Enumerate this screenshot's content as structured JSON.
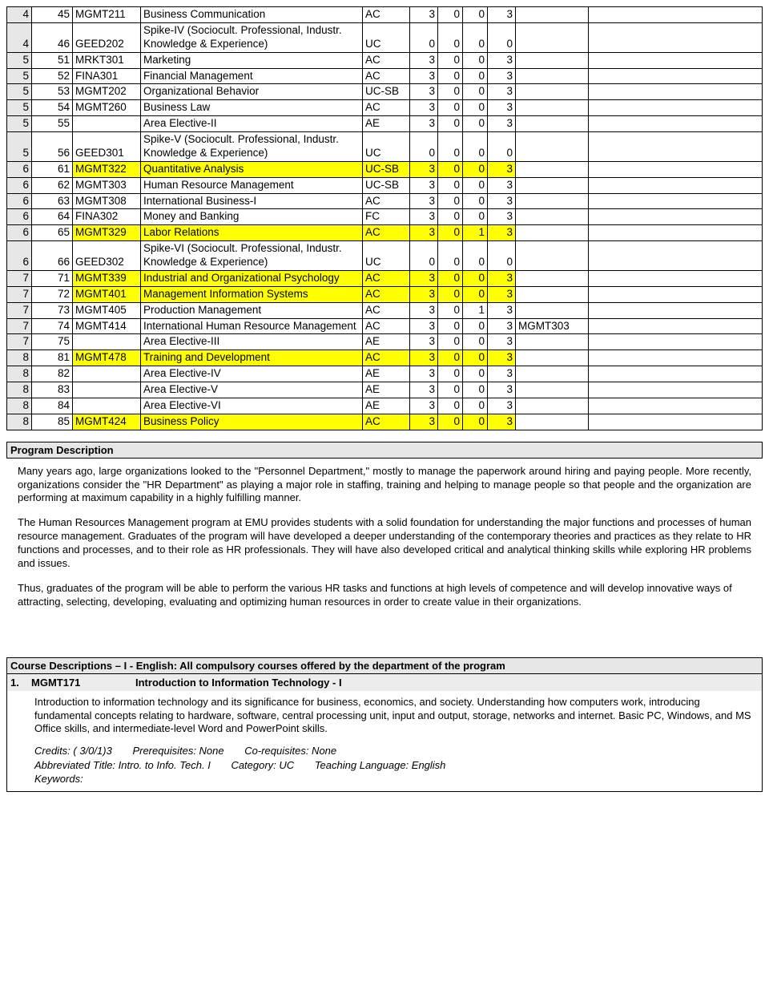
{
  "rows": [
    {
      "sem": "4",
      "rn": "45",
      "code": "MGMT211",
      "title": "Business Communication",
      "cat": "AC",
      "a": "3",
      "b": "0",
      "c": "0",
      "d": "3",
      "pre": "",
      "x": "",
      "hl": false
    },
    {
      "sem": "4",
      "rn": "46",
      "code": "GEED202",
      "title": "Spike-IV (Sociocult. Professional, Industr. Knowledge & Experience)",
      "cat": "UC",
      "a": "0",
      "b": "0",
      "c": "0",
      "d": "0",
      "pre": "",
      "x": "",
      "hl": false
    },
    {
      "sem": "5",
      "rn": "51",
      "code": "MRKT301",
      "title": "Marketing",
      "cat": "AC",
      "a": "3",
      "b": "0",
      "c": "0",
      "d": "3",
      "pre": "",
      "x": "",
      "hl": false
    },
    {
      "sem": "5",
      "rn": "52",
      "code": "FINA301",
      "title": "Financial Management",
      "cat": "AC",
      "a": "3",
      "b": "0",
      "c": "0",
      "d": "3",
      "pre": "",
      "x": "",
      "hl": false
    },
    {
      "sem": "5",
      "rn": "53",
      "code": "MGMT202",
      "title": "Organizational Behavior",
      "cat": "UC-SB",
      "a": "3",
      "b": "0",
      "c": "0",
      "d": "3",
      "pre": "",
      "x": "",
      "hl": false
    },
    {
      "sem": "5",
      "rn": "54",
      "code": "MGMT260",
      "title": "Business Law",
      "cat": "AC",
      "a": "3",
      "b": "0",
      "c": "0",
      "d": "3",
      "pre": "",
      "x": "",
      "hl": false
    },
    {
      "sem": "5",
      "rn": "55",
      "code": "",
      "title": "Area Elective-II",
      "cat": "AE",
      "a": "3",
      "b": "0",
      "c": "0",
      "d": "3",
      "pre": "",
      "x": "",
      "hl": false
    },
    {
      "sem": "5",
      "rn": "56",
      "code": "GEED301",
      "title": "Spike-V (Sociocult. Professional, Industr. Knowledge & Experience)",
      "cat": "UC",
      "a": "0",
      "b": "0",
      "c": "0",
      "d": "0",
      "pre": "",
      "x": "",
      "hl": false
    },
    {
      "sem": "6",
      "rn": "61",
      "code": "MGMT322",
      "title": "Quantitative Analysis",
      "cat": "UC-SB",
      "a": "3",
      "b": "0",
      "c": "0",
      "d": "3",
      "pre": "",
      "x": "",
      "hl": true
    },
    {
      "sem": "6",
      "rn": "62",
      "code": "MGMT303",
      "title": "Human Resource Management",
      "cat": "UC-SB",
      "a": "3",
      "b": "0",
      "c": "0",
      "d": "3",
      "pre": "",
      "x": "",
      "hl": false
    },
    {
      "sem": "6",
      "rn": "63",
      "code": "MGMT308",
      "title": "International Business-I",
      "cat": "AC",
      "a": "3",
      "b": "0",
      "c": "0",
      "d": "3",
      "pre": "",
      "x": "",
      "hl": false
    },
    {
      "sem": "6",
      "rn": "64",
      "code": "FINA302",
      "title": "Money and Banking",
      "cat": "FC",
      "a": "3",
      "b": "0",
      "c": "0",
      "d": "3",
      "pre": "",
      "x": "",
      "hl": false
    },
    {
      "sem": "6",
      "rn": "65",
      "code": "MGMT329",
      "title": "Labor Relations",
      "cat": "AC",
      "a": "3",
      "b": "0",
      "c": "1",
      "d": "3",
      "pre": "",
      "x": "",
      "hl": true
    },
    {
      "sem": "6",
      "rn": "66",
      "code": "GEED302",
      "title": "Spike-VI (Sociocult. Professional, Industr. Knowledge & Experience)",
      "cat": "UC",
      "a": "0",
      "b": "0",
      "c": "0",
      "d": "0",
      "pre": "",
      "x": "",
      "hl": false
    },
    {
      "sem": "7",
      "rn": "71",
      "code": "MGMT339",
      "title": "Industrial and Organizational Psychology",
      "cat": "AC",
      "a": "3",
      "b": "0",
      "c": "0",
      "d": "3",
      "pre": "",
      "x": "",
      "hl": true
    },
    {
      "sem": "7",
      "rn": "72",
      "code": "MGMT401",
      "title": "Management Information Systems",
      "cat": "AC",
      "a": "3",
      "b": "0",
      "c": "0",
      "d": "3",
      "pre": "",
      "x": "",
      "hl": true
    },
    {
      "sem": "7",
      "rn": "73",
      "code": "MGMT405",
      "title": "Production Management",
      "cat": "AC",
      "a": "3",
      "b": "0",
      "c": "1",
      "d": "3",
      "pre": "",
      "x": "",
      "hl": false
    },
    {
      "sem": "7",
      "rn": "74",
      "code": "MGMT414",
      "title": "International Human Resource Management",
      "cat": "AC",
      "a": "3",
      "b": "0",
      "c": "0",
      "d": "3",
      "pre": "MGMT303",
      "x": "",
      "hl": false
    },
    {
      "sem": "7",
      "rn": "75",
      "code": "",
      "title": "Area Elective-III",
      "cat": "AE",
      "a": "3",
      "b": "0",
      "c": "0",
      "d": "3",
      "pre": "",
      "x": "",
      "hl": false
    },
    {
      "sem": "8",
      "rn": "81",
      "code": "MGMT478",
      "title": "Training and Development",
      "cat": "AC",
      "a": "3",
      "b": "0",
      "c": "0",
      "d": "3",
      "pre": "",
      "x": "",
      "hl": true
    },
    {
      "sem": "8",
      "rn": "82",
      "code": "",
      "title": "Area Elective-IV",
      "cat": "AE",
      "a": "3",
      "b": "0",
      "c": "0",
      "d": "3",
      "pre": "",
      "x": "",
      "hl": false
    },
    {
      "sem": "8",
      "rn": "83",
      "code": "",
      "title": "Area Elective-V",
      "cat": "AE",
      "a": "3",
      "b": "0",
      "c": "0",
      "d": "3",
      "pre": "",
      "x": "",
      "hl": false
    },
    {
      "sem": "8",
      "rn": "84",
      "code": "",
      "title": "Area Elective-VI",
      "cat": "AE",
      "a": "3",
      "b": "0",
      "c": "0",
      "d": "3",
      "pre": "",
      "x": "",
      "hl": false
    },
    {
      "sem": "8",
      "rn": "85",
      "code": "MGMT424",
      "title": "Business Policy",
      "cat": "AC",
      "a": "3",
      "b": "0",
      "c": "0",
      "d": "3",
      "pre": "",
      "x": "",
      "hl": true
    }
  ],
  "section1_title": "Program Description",
  "para1": "Many years ago, large organizations looked to the \"Personnel Department,\" mostly to manage the paperwork around hiring and paying people. More recently, organizations consider the \"HR Department\" as playing a major role in staffing, training and helping to manage people so that people and the organization are performing at maximum capability in a highly fulfilling manner.",
  "para2": "The Human Resources Management program at EMU provides students with a solid foundation for understanding the major functions and processes of human resource management.  Graduates of the program will have developed a deeper understanding of the contemporary theories and practices as they relate to HR functions and processes, and to their role as HR professionals.  They will have also developed critical and analytical thinking skills while exploring HR problems and issues.",
  "para3": "Thus, graduates of the program will be able to perform the various HR tasks and functions at high levels of competence and will develop innovative ways of attracting, selecting, developing, evaluating and optimizing human resources in order to create value in their organizations.",
  "cd_header": "Course Descriptions – I - English: All compulsory courses offered by the department of the program",
  "cd_num": "1.",
  "cd_code": "MGMT171",
  "cd_title": "Introduction to Information Technology - I",
  "cd_body": "Introduction to information technology and its significance for business, economics, and society.  Understanding how computers work, introducing fundamental concepts relating to hardware, software, central processing unit, input and output, storage, networks and internet. Basic PC, Windows, and MS Office skills, and intermediate-level Word and PowerPoint skills.",
  "cd_credits": "Credits:  ( 3/0/1)3",
  "cd_prereq": "Prerequisites: None",
  "cd_coreq": "Co-requisites: None",
  "cd_abbr": "Abbreviated Title: Intro. to Info. Tech. I",
  "cd_cat": "Category: UC",
  "cd_lang": "Teaching Language: English",
  "cd_kw": "Keywords:"
}
